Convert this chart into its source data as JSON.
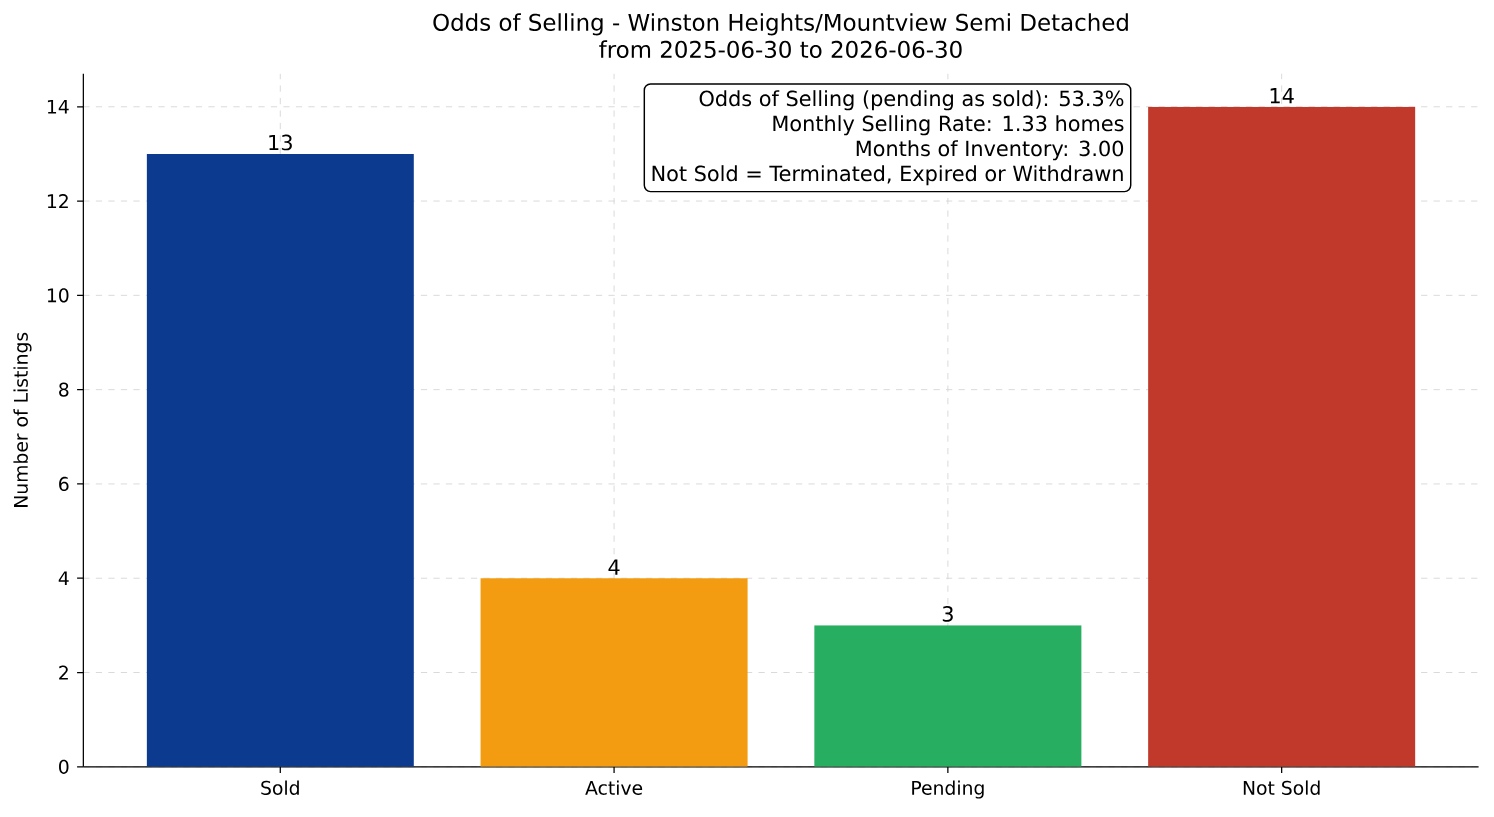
{
  "chart_data": {
    "type": "bar",
    "title": "Odds of Selling - Winston Heights/Mountview Semi Detached",
    "subtitle": "from 2025-06-30 to 2026-06-30",
    "ylabel": "Number of Listings",
    "categories": [
      "Sold",
      "Active",
      "Pending",
      "Not Sold"
    ],
    "values": [
      13,
      4,
      3,
      14
    ],
    "colors": [
      "#0b3a8f",
      "#f39c12",
      "#27ae60",
      "#c0392b"
    ],
    "data_labels": true,
    "ylim": [
      0,
      14.7
    ],
    "yticks": [
      0,
      2,
      4,
      6,
      8,
      10,
      12,
      14
    ],
    "grid": true,
    "annotations": [
      "Odds of Selling (pending as sold): 53.3%",
      "Monthly Selling Rate: 1.33 homes",
      "Months of Inventory: 3.00",
      "Not Sold = Terminated, Expired or Withdrawn"
    ]
  }
}
